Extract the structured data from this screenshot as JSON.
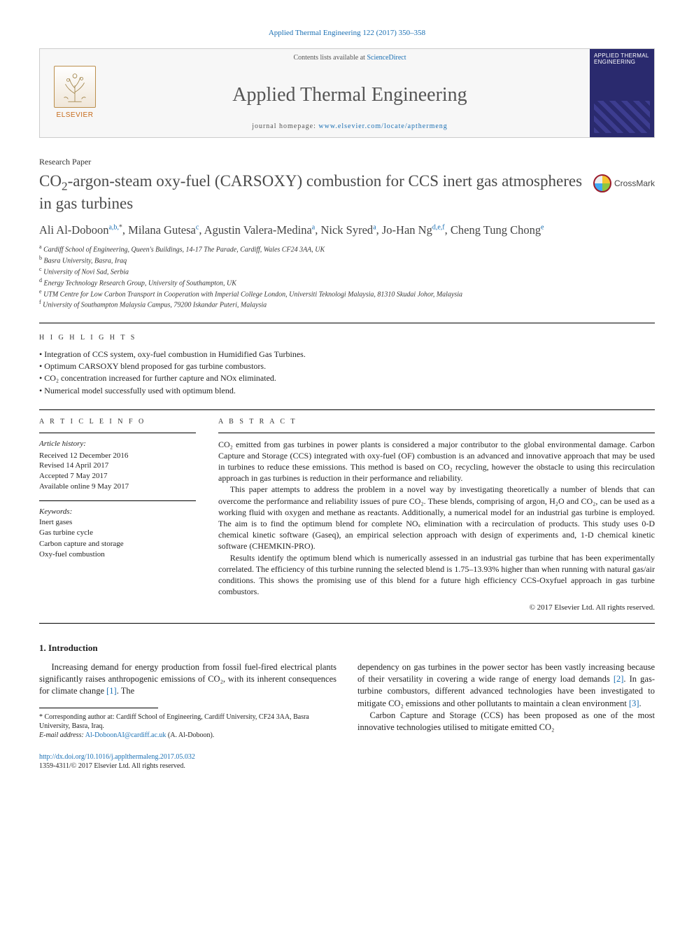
{
  "colors": {
    "link": "#1a6fb3",
    "text": "#222222",
    "muted": "#555555",
    "rule": "#000000",
    "banner_bg": "#f7f7f7",
    "cover_bg": "#2a2a6e",
    "elsevier_orange": "#c66a1a"
  },
  "typography": {
    "body_family": "Georgia, Times New Roman, serif",
    "title_size_pt": 17,
    "body_size_pt": 10,
    "small_size_pt": 8
  },
  "citation_line": "Applied Thermal Engineering 122 (2017) 350–358",
  "banner": {
    "contents_line_prefix": "Contents lists available at ",
    "contents_link_text": "ScienceDirect",
    "journal_title": "Applied Thermal Engineering",
    "homepage_prefix": "journal homepage: ",
    "homepage_url": "www.elsevier.com/locate/apthermeng",
    "elsevier_label": "ELSEVIER",
    "cover_title": "APPLIED THERMAL ENGINEERING"
  },
  "paper_type": "Research Paper",
  "title_html": "CO<sub>2</sub>-argon-steam oxy-fuel (CARSOXY) combustion for CCS inert gas atmospheres in gas turbines",
  "crossmark_label": "CrossMark",
  "authors": [
    {
      "name": "Ali Al-Doboon",
      "affmarks": "a,b,",
      "star": true
    },
    {
      "name": "Milana Gutesa",
      "affmarks": "c"
    },
    {
      "name": "Agustin Valera-Medina",
      "affmarks": "a"
    },
    {
      "name": "Nick Syred",
      "affmarks": "a"
    },
    {
      "name": "Jo-Han Ng",
      "affmarks": "d,e,f"
    },
    {
      "name": "Cheng Tung Chong",
      "affmarks": "e"
    }
  ],
  "affiliations": [
    {
      "mark": "a",
      "text": "Cardiff School of Engineering, Queen's Buildings, 14-17 The Parade, Cardiff, Wales CF24 3AA, UK"
    },
    {
      "mark": "b",
      "text": "Basra University, Basra, Iraq"
    },
    {
      "mark": "c",
      "text": "University of Novi Sad, Serbia"
    },
    {
      "mark": "d",
      "text": "Energy Technology Research Group, University of Southampton, UK"
    },
    {
      "mark": "e",
      "text": "UTM Centre for Low Carbon Transport in Cooperation with Imperial College London, Universiti Teknologi Malaysia, 81310 Skudai Johor, Malaysia"
    },
    {
      "mark": "f",
      "text": "University of Southampton Malaysia Campus, 79200 Iskandar Puteri, Malaysia"
    }
  ],
  "labels": {
    "highlights": "H I G H L I G H T S",
    "article_info": "A R T I C L E   I N F O",
    "abstract": "A B S T R A C T"
  },
  "highlights": [
    "Integration of CCS system, oxy-fuel combustion in Humidified Gas Turbines.",
    "Optimum CARSOXY blend proposed for gas turbine combustors.",
    "CO₂ concentration increased for further capture and NOx eliminated.",
    "Numerical model successfully used with optimum blend."
  ],
  "article_info": {
    "history_label": "Article history:",
    "history": [
      "Received 12 December 2016",
      "Revised 14 April 2017",
      "Accepted 7 May 2017",
      "Available online 9 May 2017"
    ],
    "keywords_label": "Keywords:",
    "keywords": [
      "Inert gases",
      "Gas turbine cycle",
      "Carbon capture and storage",
      "Oxy-fuel combustion"
    ]
  },
  "abstract_paragraphs": [
    "CO₂ emitted from gas turbines in power plants is considered a major contributor to the global environmental damage. Carbon Capture and Storage (CCS) integrated with oxy-fuel (OF) combustion is an advanced and innovative approach that may be used in turbines to reduce these emissions. This method is based on CO₂ recycling, however the obstacle to using this recirculation approach in gas turbines is reduction in their performance and reliability.",
    "This paper attempts to address the problem in a novel way by investigating theoretically a number of blends that can overcome the performance and reliability issues of pure CO₂. These blends, comprising of argon, H₂O and CO₂, can be used as a working fluid with oxygen and methane as reactants. Additionally, a numerical model for an industrial gas turbine is employed. The aim is to find the optimum blend for complete NOₓ elimination with a recirculation of products. This study uses 0-D chemical kinetic software (Gaseq), an empirical selection approach with design of experiments and, 1-D chemical kinetic software (CHEMKIN-PRO).",
    "Results identify the optimum blend which is numerically assessed in an industrial gas turbine that has been experimentally correlated. The efficiency of this turbine running the selected blend is 1.75–13.93% higher than when running with natural gas/air conditions. This shows the promising use of this blend for a future high efficiency CCS-Oxyfuel approach in gas turbine combustors."
  ],
  "copyright": "© 2017 Elsevier Ltd. All rights reserved.",
  "introduction": {
    "heading": "1. Introduction",
    "col1_p1_pre": "Increasing demand for energy production from fossil fuel-fired electrical plants significantly raises anthropogenic emissions of CO₂, with its inherent consequences for climate change ",
    "col1_ref1": "[1]",
    "col1_p1_post": ". The",
    "col2_p1_pre": "dependency on gas turbines in the power sector has been vastly increasing because of their versatility in covering a wide range of energy load demands ",
    "col2_ref2": "[2]",
    "col2_p1_mid": ". In gas-turbine combustors, different advanced technologies have been investigated to mitigate CO₂ emissions and other pollutants to maintain a clean environment ",
    "col2_ref3": "[3]",
    "col2_p1_post": ".",
    "col2_p2": "Carbon Capture and Storage (CCS) has been proposed as one of the most innovative technologies utilised to mitigate emitted CO₂"
  },
  "footnotes": {
    "corresponding": "* Corresponding author at: Cardiff School of Engineering, Cardiff University, CF24 3AA, Basra University, Basra, Iraq.",
    "email_label": "E-mail address:",
    "email": "Al-DoboonAI@cardiff.ac.uk",
    "email_owner": "(A. Al-Doboon)."
  },
  "bottom": {
    "doi": "http://dx.doi.org/10.1016/j.applthermaleng.2017.05.032",
    "issn_line": "1359-4311/© 2017 Elsevier Ltd. All rights reserved."
  }
}
